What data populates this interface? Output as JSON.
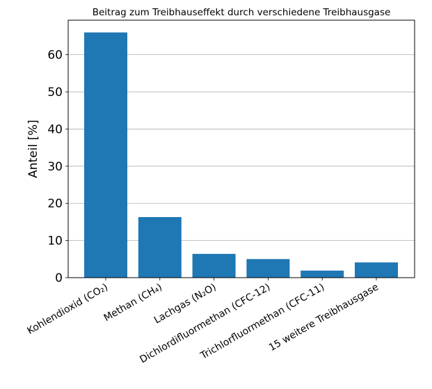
{
  "chart_data": {
    "type": "bar",
    "title": "Beitrag zum Treibhauseffekt durch verschiedene Treibhausgase",
    "xlabel": "",
    "ylabel": "Anteil [%]",
    "categories": [
      "Kohlendioxid (CO₂)",
      "Methan (CH₄)",
      "Lachgas (N₂O)",
      "Dichlordifluormethan (CFC-12)",
      "Trichlorfluormethan (CFC-11)",
      "15 weitere Treibhausgase"
    ],
    "values": [
      66.0,
      16.3,
      6.4,
      5.0,
      1.9,
      4.1
    ],
    "ylim": [
      0,
      69.3
    ],
    "yticks": [
      0,
      10,
      20,
      30,
      40,
      50,
      60
    ],
    "grid": "y",
    "bar_color": "#1f77b4"
  }
}
